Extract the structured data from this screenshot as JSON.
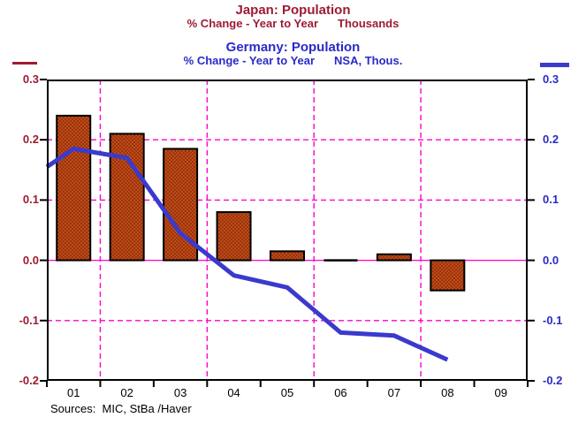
{
  "header": {
    "japan": {
      "title": "Japan: Population",
      "subtitle_left": "% Change - Year to Year",
      "subtitle_right": "Thousands",
      "color": "#9E1B32"
    },
    "germany": {
      "title": "Germany: Population",
      "subtitle_left": "% Change - Year to Year",
      "subtitle_right": "NSA, Thous.",
      "color": "#2A2AC8"
    }
  },
  "footer": {
    "sources": "Sources:  MIC, StBa /Haver"
  },
  "axes": {
    "left_tick_labels": [
      "0.3",
      "0.2",
      "0.1",
      "0.0",
      "-0.1",
      "-0.2"
    ],
    "right_tick_labels": [
      "0.3",
      "0.2",
      "0.1",
      "0.0",
      "-0.1",
      "-0.2"
    ],
    "x_tick_labels": [
      "01",
      "02",
      "03",
      "04",
      "05",
      "06",
      "07",
      "08",
      "09"
    ]
  },
  "chart_data": {
    "type": "bar",
    "subtype": "combo-bar-line",
    "categories": [
      "01",
      "02",
      "03",
      "04",
      "05",
      "06",
      "07",
      "08",
      "09"
    ],
    "series": [
      {
        "name": "Japan: Population (% Change - Year to Year, Thousands)",
        "type": "bar",
        "axis": "left",
        "color": "#BE4B18",
        "dot_color": "#7E2203",
        "border_color": "#000000",
        "values": [
          0.24,
          0.21,
          0.185,
          0.08,
          0.015,
          0.0,
          0.01,
          -0.05,
          null
        ]
      },
      {
        "name": "Germany: Population (% Change - Year to Year, NSA, Thous.)",
        "type": "line",
        "axis": "right",
        "color": "#3A3ACC",
        "edge_entry_value": 0.155,
        "values": [
          0.185,
          0.17,
          0.045,
          -0.025,
          -0.045,
          -0.12,
          -0.125,
          -0.165,
          null
        ]
      }
    ],
    "ylim": [
      -0.2,
      0.3
    ],
    "yticks": [
      0.3,
      0.2,
      0.1,
      0.0,
      -0.1,
      -0.2
    ],
    "dashed_gridlines": [
      0.2,
      0.1,
      -0.1
    ],
    "zero_line": 0.0,
    "vertical_gridline_boundaries": [
      1,
      3,
      5,
      7
    ],
    "grid_color": "#FF00CC",
    "frame_color": "#000000",
    "legend_position": "top-edges",
    "grid": true
  },
  "geometry_note": {
    "plot": "x 53-597, y 90-431"
  }
}
